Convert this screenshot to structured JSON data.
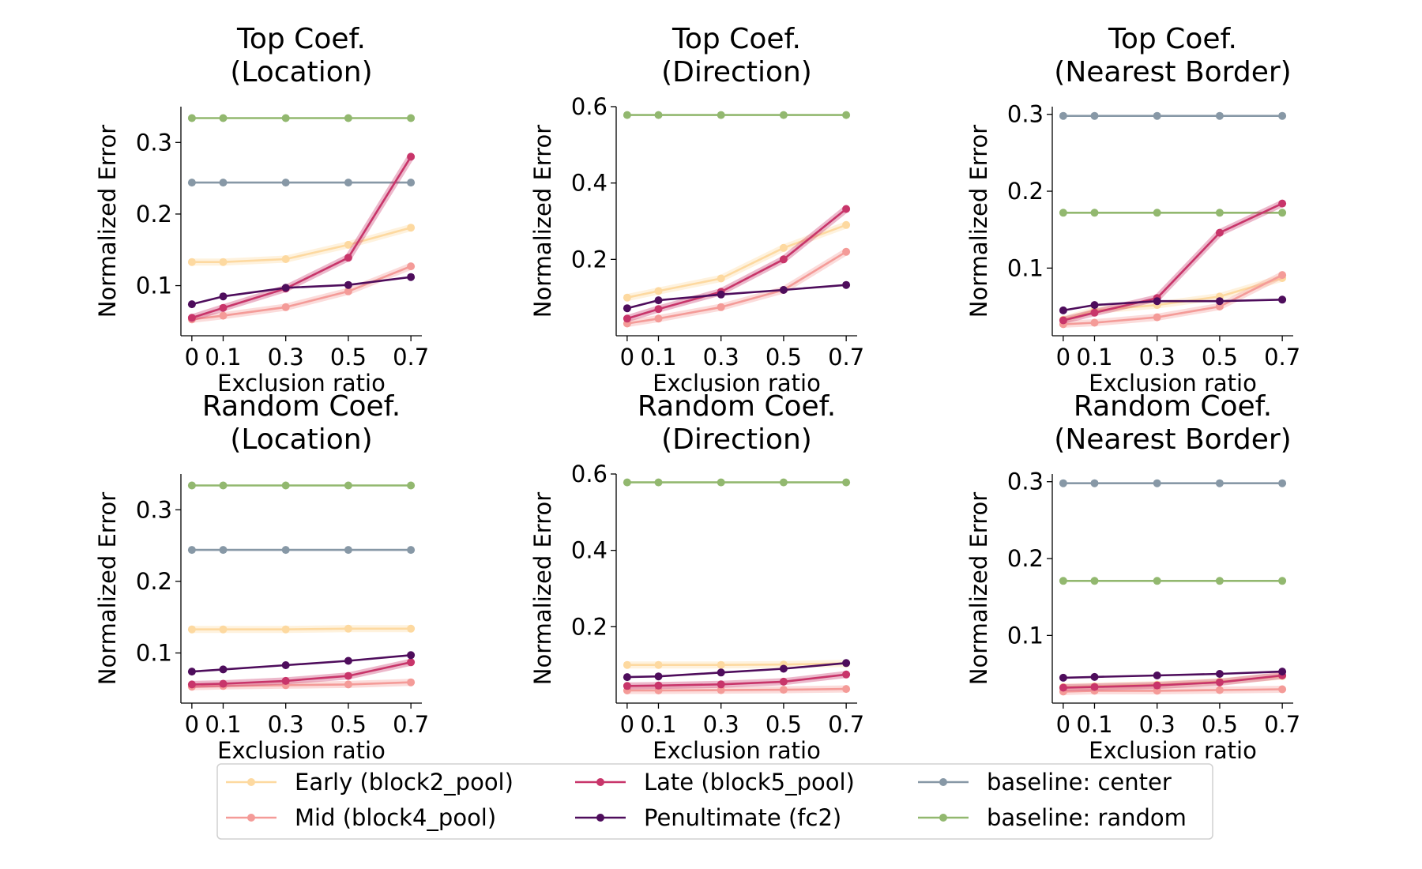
{
  "colors": {
    "early": "#fdd9a0",
    "mid": "#f49b98",
    "late": "#c8356a",
    "penultimate": "#4e0d5c",
    "baseline_center": "#8798a6",
    "baseline_random": "#92b86f"
  },
  "legend": [
    {
      "key": "early",
      "label": "Early (block2_pool)"
    },
    {
      "key": "mid",
      "label": "Mid (block4_pool)"
    },
    {
      "key": "late",
      "label": "Late (block5_pool)"
    },
    {
      "key": "penultimate",
      "label": "Penultimate (fc2)"
    },
    {
      "key": "baseline_center",
      "label": "baseline: center"
    },
    {
      "key": "baseline_random",
      "label": "baseline: random"
    }
  ],
  "chart_data": [
    {
      "type": "line",
      "title": [
        "Top Coef.",
        "(Location)"
      ],
      "xlabel": "Exclusion ratio",
      "ylabel": "Normalized Error",
      "x": [
        0,
        0.1,
        0.3,
        0.5,
        0.7
      ],
      "xticks": [
        "0",
        "0.1",
        "0.3",
        "0.5",
        "0.7"
      ],
      "ylim": [
        0.03,
        0.35
      ],
      "yticks": [
        0.1,
        0.2,
        0.3
      ],
      "ytick_labels": [
        "0.1",
        "0.2",
        "0.3"
      ],
      "series": [
        {
          "key": "baseline_random",
          "values": [
            0.334,
            0.334,
            0.334,
            0.334,
            0.334
          ]
        },
        {
          "key": "baseline_center",
          "values": [
            0.244,
            0.244,
            0.244,
            0.244,
            0.244
          ]
        },
        {
          "key": "early",
          "values": [
            0.133,
            0.133,
            0.137,
            0.157,
            0.181
          ]
        },
        {
          "key": "mid",
          "values": [
            0.053,
            0.058,
            0.07,
            0.092,
            0.127
          ]
        },
        {
          "key": "late",
          "values": [
            0.055,
            0.069,
            0.096,
            0.139,
            0.28
          ]
        },
        {
          "key": "penultimate",
          "values": [
            0.074,
            0.085,
            0.097,
            0.101,
            0.112
          ]
        }
      ]
    },
    {
      "type": "line",
      "title": [
        "Top Coef.",
        "(Direction)"
      ],
      "xlabel": "Exclusion ratio",
      "ylabel": "Normalized Error",
      "x": [
        0,
        0.1,
        0.3,
        0.5,
        0.7
      ],
      "xticks": [
        "0",
        "0.1",
        "0.3",
        "0.5",
        "0.7"
      ],
      "ylim": [
        0.0,
        0.6
      ],
      "yticks": [
        0.2,
        0.4,
        0.6
      ],
      "ytick_labels": [
        "0.2",
        "0.4",
        "0.6"
      ],
      "series": [
        {
          "key": "baseline_random",
          "values": [
            0.578,
            0.578,
            0.578,
            0.578,
            0.578
          ]
        },
        {
          "key": "early",
          "values": [
            0.1,
            0.117,
            0.15,
            0.23,
            0.29
          ]
        },
        {
          "key": "mid",
          "values": [
            0.032,
            0.045,
            0.075,
            0.12,
            0.22
          ]
        },
        {
          "key": "late",
          "values": [
            0.045,
            0.07,
            0.115,
            0.2,
            0.332
          ]
        },
        {
          "key": "penultimate",
          "values": [
            0.072,
            0.093,
            0.108,
            0.12,
            0.133
          ]
        }
      ]
    },
    {
      "type": "line",
      "title": [
        "Top Coef.",
        "(Nearest Border)"
      ],
      "xlabel": "Exclusion ratio",
      "ylabel": "Normalized Error",
      "x": [
        0,
        0.1,
        0.3,
        0.5,
        0.7
      ],
      "xticks": [
        "0",
        "0.1",
        "0.3",
        "0.5",
        "0.7"
      ],
      "ylim": [
        0.012,
        0.31
      ],
      "yticks": [
        0.1,
        0.2,
        0.3
      ],
      "ytick_labels": [
        "0.1",
        "0.2",
        "0.3"
      ],
      "series": [
        {
          "key": "baseline_center",
          "values": [
            0.298,
            0.298,
            0.298,
            0.298,
            0.298
          ]
        },
        {
          "key": "baseline_random",
          "values": [
            0.172,
            0.172,
            0.172,
            0.172,
            0.172
          ]
        },
        {
          "key": "early",
          "values": [
            0.033,
            0.045,
            0.052,
            0.063,
            0.087
          ]
        },
        {
          "key": "mid",
          "values": [
            0.027,
            0.029,
            0.036,
            0.05,
            0.091
          ]
        },
        {
          "key": "late",
          "values": [
            0.032,
            0.042,
            0.061,
            0.146,
            0.184
          ]
        },
        {
          "key": "penultimate",
          "values": [
            0.045,
            0.052,
            0.057,
            0.057,
            0.059
          ]
        }
      ]
    },
    {
      "type": "line",
      "title": [
        "Random Coef.",
        "(Location)"
      ],
      "xlabel": "Exclusion ratio",
      "ylabel": "Normalized Error",
      "x": [
        0,
        0.1,
        0.3,
        0.5,
        0.7
      ],
      "xticks": [
        "0",
        "0.1",
        "0.3",
        "0.5",
        "0.7"
      ],
      "ylim": [
        0.03,
        0.35
      ],
      "yticks": [
        0.1,
        0.2,
        0.3
      ],
      "ytick_labels": [
        "0.1",
        "0.2",
        "0.3"
      ],
      "series": [
        {
          "key": "baseline_random",
          "values": [
            0.334,
            0.334,
            0.334,
            0.334,
            0.334
          ]
        },
        {
          "key": "baseline_center",
          "values": [
            0.244,
            0.244,
            0.244,
            0.244,
            0.244
          ]
        },
        {
          "key": "early",
          "values": [
            0.133,
            0.133,
            0.133,
            0.134,
            0.134
          ]
        },
        {
          "key": "mid",
          "values": [
            0.053,
            0.054,
            0.055,
            0.056,
            0.059
          ]
        },
        {
          "key": "late",
          "values": [
            0.056,
            0.057,
            0.061,
            0.068,
            0.087
          ]
        },
        {
          "key": "penultimate",
          "values": [
            0.074,
            0.077,
            0.083,
            0.089,
            0.097
          ]
        }
      ]
    },
    {
      "type": "line",
      "title": [
        "Random Coef.",
        "(Direction)"
      ],
      "xlabel": "Exclusion ratio",
      "ylabel": "Normalized Error",
      "x": [
        0,
        0.1,
        0.3,
        0.5,
        0.7
      ],
      "xticks": [
        "0",
        "0.1",
        "0.3",
        "0.5",
        "0.7"
      ],
      "ylim": [
        0.0,
        0.6
      ],
      "yticks": [
        0.2,
        0.4,
        0.6
      ],
      "ytick_labels": [
        "0.2",
        "0.4",
        "0.6"
      ],
      "series": [
        {
          "key": "baseline_random",
          "values": [
            0.578,
            0.578,
            0.578,
            0.578,
            0.578
          ]
        },
        {
          "key": "early",
          "values": [
            0.1,
            0.1,
            0.1,
            0.101,
            0.104
          ]
        },
        {
          "key": "mid",
          "values": [
            0.033,
            0.033,
            0.034,
            0.035,
            0.037
          ]
        },
        {
          "key": "late",
          "values": [
            0.045,
            0.046,
            0.049,
            0.056,
            0.075
          ]
        },
        {
          "key": "penultimate",
          "values": [
            0.068,
            0.07,
            0.08,
            0.09,
            0.105
          ]
        }
      ]
    },
    {
      "type": "line",
      "title": [
        "Random Coef.",
        "(Nearest Border)"
      ],
      "xlabel": "Exclusion ratio",
      "ylabel": "Normalized Error",
      "x": [
        0,
        0.1,
        0.3,
        0.5,
        0.7
      ],
      "xticks": [
        "0",
        "0.1",
        "0.3",
        "0.5",
        "0.7"
      ],
      "ylim": [
        0.012,
        0.31
      ],
      "yticks": [
        0.1,
        0.2,
        0.3
      ],
      "ytick_labels": [
        "0.1",
        "0.2",
        "0.3"
      ],
      "series": [
        {
          "key": "baseline_center",
          "values": [
            0.298,
            0.298,
            0.298,
            0.298,
            0.298
          ]
        },
        {
          "key": "baseline_random",
          "values": [
            0.171,
            0.171,
            0.171,
            0.171,
            0.171
          ]
        },
        {
          "key": "early",
          "values": [
            0.033,
            0.034,
            0.036,
            0.04,
            0.047
          ]
        },
        {
          "key": "mid",
          "values": [
            0.027,
            0.028,
            0.028,
            0.029,
            0.03
          ]
        },
        {
          "key": "late",
          "values": [
            0.032,
            0.033,
            0.035,
            0.039,
            0.048
          ]
        },
        {
          "key": "penultimate",
          "values": [
            0.045,
            0.046,
            0.048,
            0.05,
            0.053
          ]
        }
      ]
    }
  ]
}
